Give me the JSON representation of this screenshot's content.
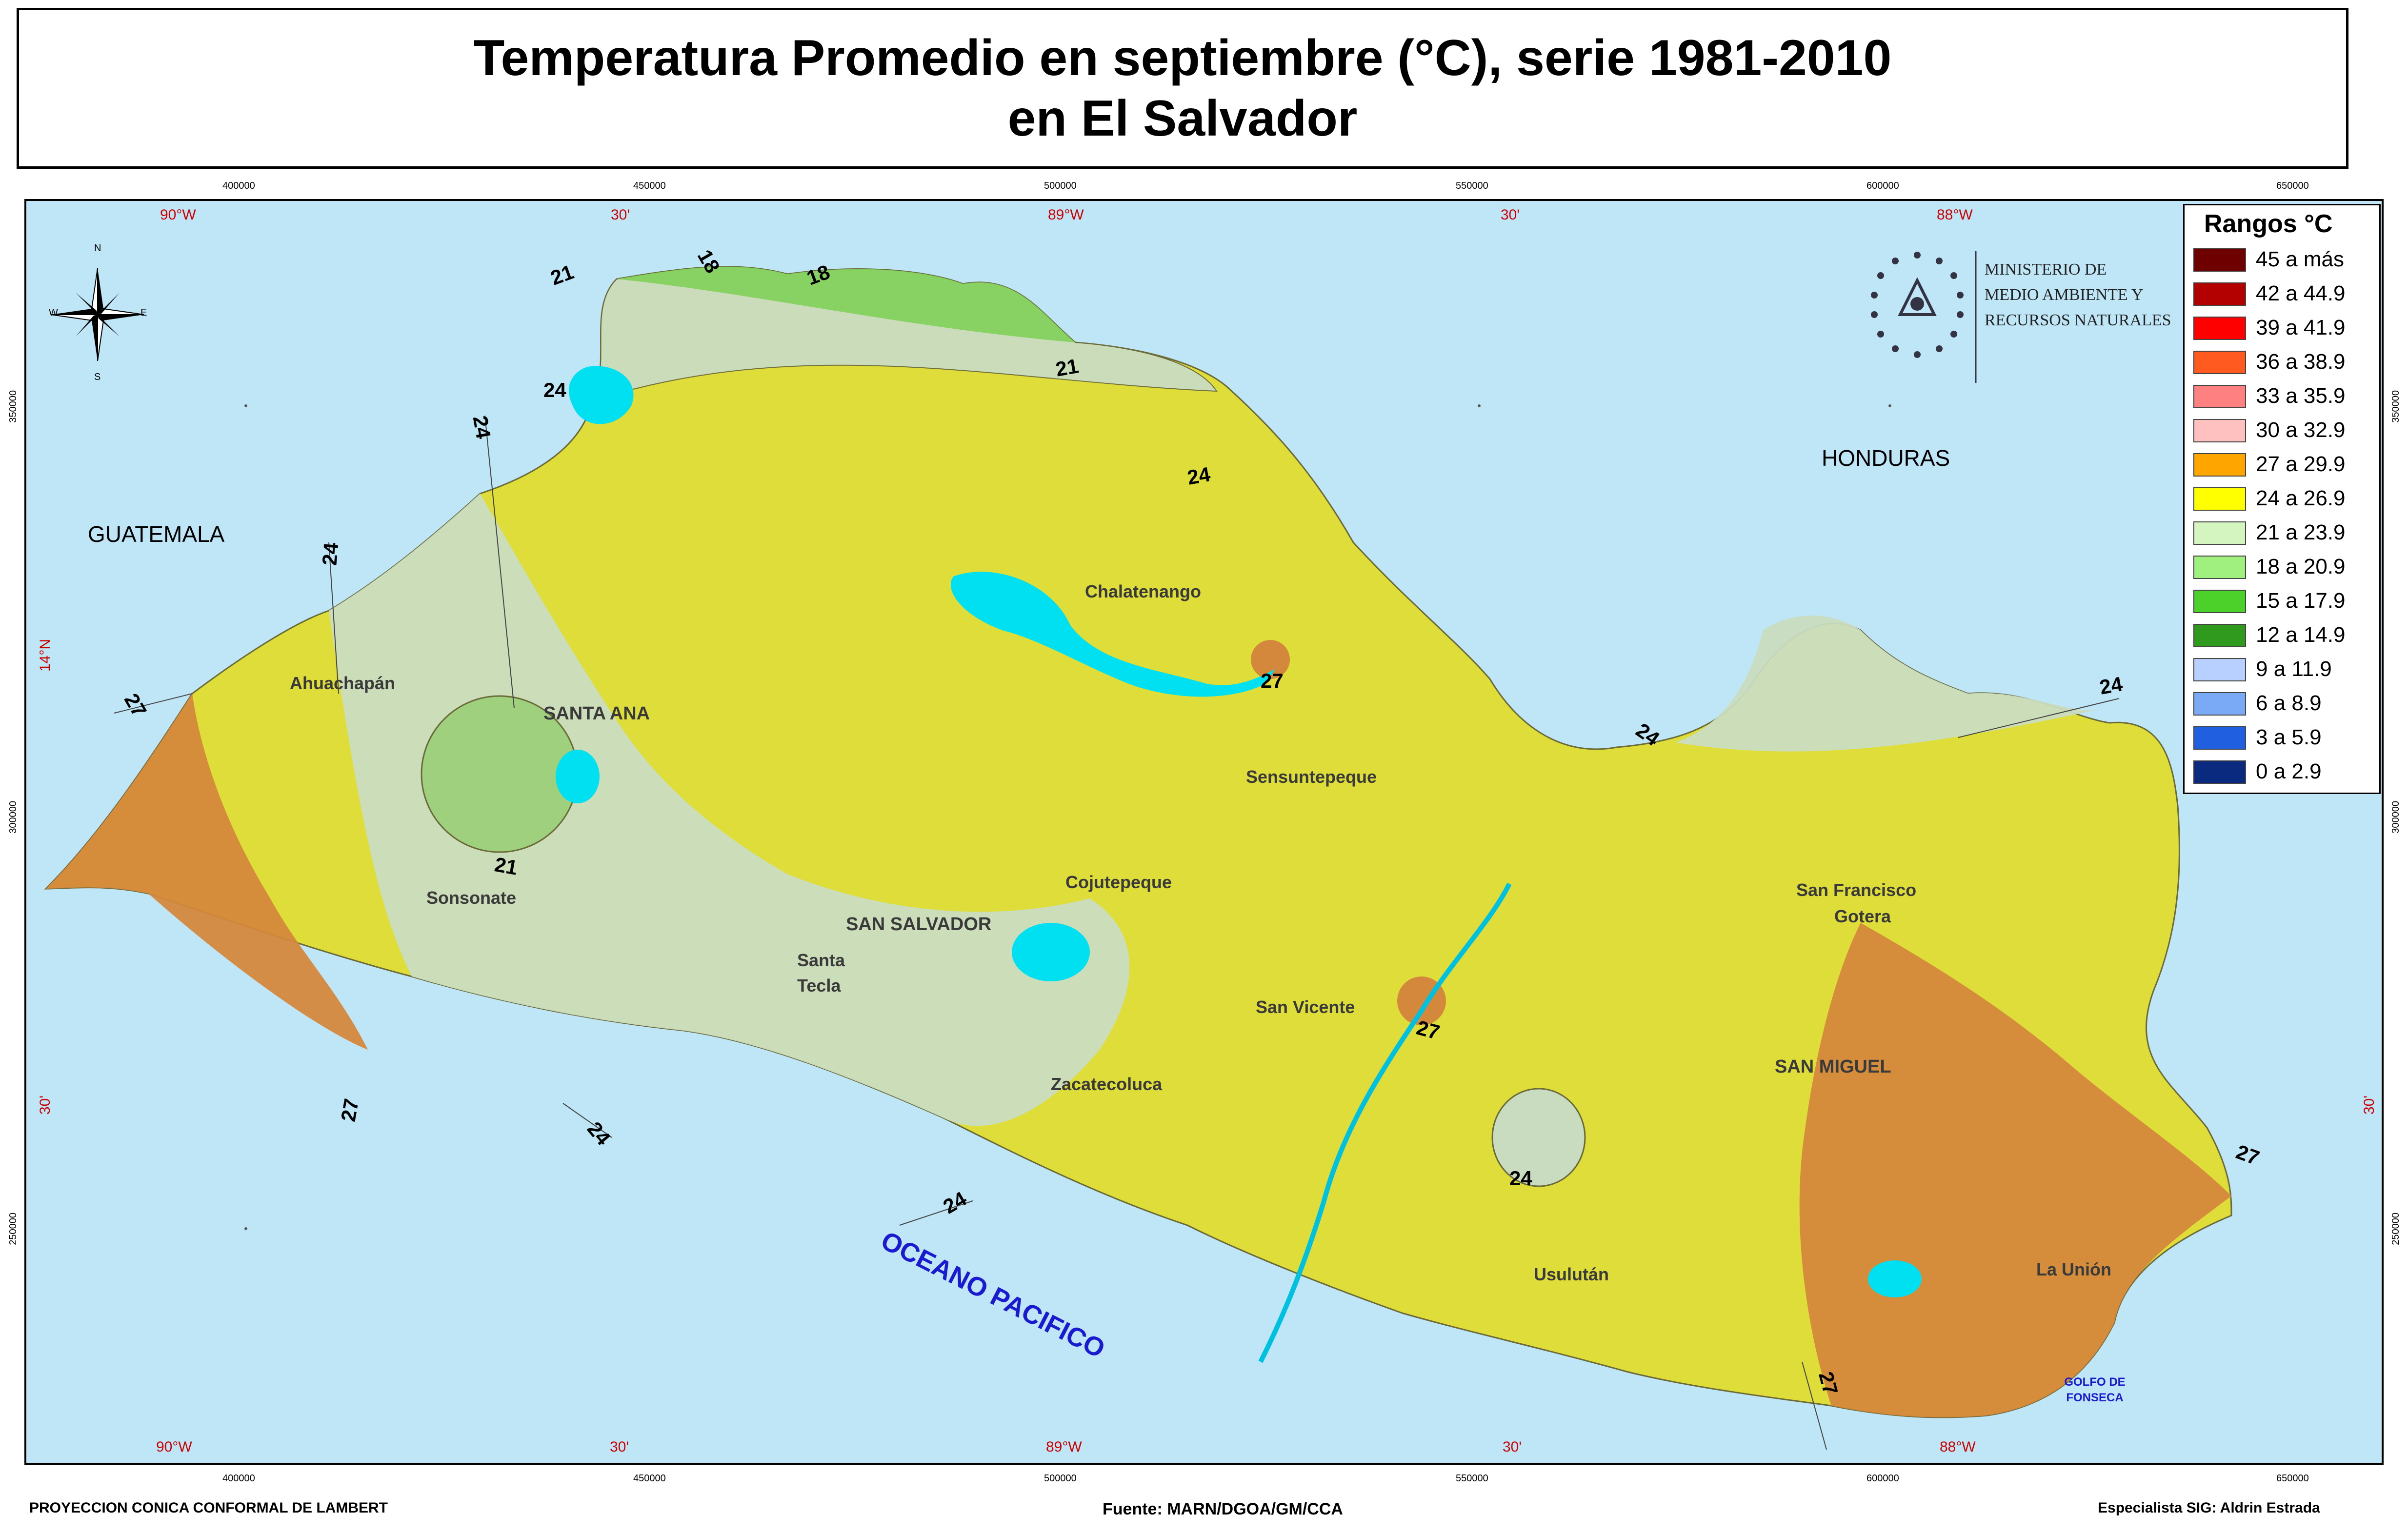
{
  "title": {
    "line1": "Temperatura Promedio en septiembre (°C), serie 1981-2010",
    "line2": "en El Salvador"
  },
  "ticks": {
    "top_easting": [
      "400000",
      "450000",
      "500000",
      "550000",
      "600000",
      "650000"
    ],
    "top_graticule": [
      "90°W",
      "30'",
      "89°W",
      "30'",
      "88°W"
    ],
    "bottom_easting": [
      "400000",
      "450000",
      "500000",
      "550000",
      "600000",
      "650000"
    ],
    "bottom_graticule": [
      "90°W",
      "30'",
      "89°W",
      "30'",
      "88°W"
    ],
    "northing": [
      "350000",
      "300000",
      "250000"
    ],
    "latitude": [
      "14°N",
      "30'"
    ]
  },
  "countries": {
    "guatemala": "GUATEMALA",
    "honduras": "HONDURAS"
  },
  "water": {
    "ocean": "OCEANO PACIFICO",
    "gulf_line1": "GOLFO DE",
    "gulf_line2": "FONSECA"
  },
  "places": {
    "chalatenango": "Chalatenango",
    "ahuachapan": "Ahuachapán",
    "santa_ana": "SANTA ANA",
    "sensuntepeque": "Sensuntepeque",
    "cojutepeque": "Cojutepeque",
    "san_salvador": "SAN SALVADOR",
    "sonsonate": "Sonsonate",
    "santa_tecla_1": "Santa",
    "santa_tecla_2": "Tecla",
    "san_vicente": "San Vicente",
    "san_francisco_gotera_1": "San Francisco",
    "san_francisco_gotera_2": "Gotera",
    "san_miguel": "SAN MIGUEL",
    "zacatecoluca": "Zacatecoluca",
    "usulutan": "Usulután",
    "la_union": "La Unión"
  },
  "isolines": {
    "north_21": "21",
    "north_18a": "18",
    "north_18b": "18",
    "north_21b": "21",
    "lake_24": "24",
    "west_24a": "24",
    "west_24b": "24",
    "north_24": "24",
    "west_27": "27",
    "santa_ana_21": "21",
    "cerron_27": "27",
    "southwest_27": "27",
    "sonsonate_24": "24",
    "coast_24": "24",
    "san_vicente_27": "27",
    "usulutan_24": "24",
    "northeast_24a": "24",
    "northeast_24b": "24",
    "east_27": "27",
    "gulf_27": "27"
  },
  "compass": {
    "n": "N",
    "s": "S",
    "e": "E",
    "w": "W"
  },
  "ministry": {
    "line1": "MINISTERIO DE",
    "line2": "MEDIO AMBIENTE Y",
    "line3": "RECURSOS NATURALES"
  },
  "legend": {
    "title": "Rangos °C",
    "items": [
      {
        "label": "45 a más",
        "color": "#6e0000"
      },
      {
        "label": "42 a 44.9",
        "color": "#b30000"
      },
      {
        "label": "39 a 41.9",
        "color": "#ff0000"
      },
      {
        "label": "36 a 38.9",
        "color": "#ff5a1f"
      },
      {
        "label": "33 a 35.9",
        "color": "#ff8080"
      },
      {
        "label": "30 a 32.9",
        "color": "#ffc0c0"
      },
      {
        "label": "27 a 29.9",
        "color": "#ffa500"
      },
      {
        "label": "24 a 26.9",
        "color": "#ffff00"
      },
      {
        "label": "21 a 23.9",
        "color": "#d4f5c0"
      },
      {
        "label": "18 a 20.9",
        "color": "#a0f080"
      },
      {
        "label": "15 a 17.9",
        "color": "#4cd02a"
      },
      {
        "label": "12 a 14.9",
        "color": "#2f9a1e"
      },
      {
        "label": "9 a 11.9",
        "color": "#b8d0ff"
      },
      {
        "label": "6 a 8.9",
        "color": "#7aaaf5"
      },
      {
        "label": "3 a 5.9",
        "color": "#1f5fe0"
      },
      {
        "label": "0 a 2.9",
        "color": "#0a2a80"
      }
    ]
  },
  "footer": {
    "projection": "PROYECCION CONICA CONFORMAL DE LAMBERT",
    "source": "Fuente: MARN/DGOA/GM/CCA",
    "specialist": "Especialista SIG: Aldrin Estrada"
  }
}
